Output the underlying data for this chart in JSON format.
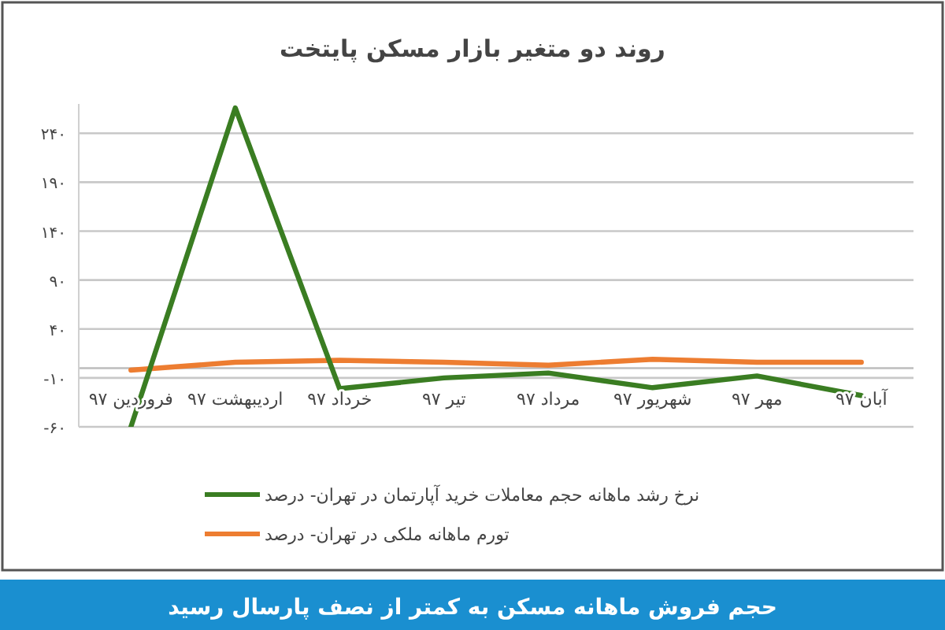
{
  "chart_data": {
    "type": "line",
    "title": "روند دو متغیر بازار مسکن پایتخت",
    "categories": [
      "فروردین ۹۷",
      "اردیبهشت ۹۷",
      "خرداد ۹۷",
      "تیر ۹۷",
      "مرداد ۹۷",
      "شهریور ۹۷",
      "مهر ۹۷",
      "آبان ۹۷"
    ],
    "series": [
      {
        "name": "نرخ رشد ماهانه حجم معاملات خرید آپارتمان در تهران- درصد",
        "color": "#3a7d22",
        "values": [
          -60,
          266,
          -21,
          -10,
          -5,
          -20,
          -8,
          -28
        ]
      },
      {
        "name": "تورم ماهانه ملکی در تهران- درصد",
        "color": "#ed7d31",
        "values": [
          -2,
          6,
          8,
          6,
          3,
          9,
          6,
          6
        ]
      }
    ],
    "ylim": [
      -60,
      270
    ],
    "yticks": [
      {
        "value": -60,
        "label": "-۶۰"
      },
      {
        "value": -10,
        "label": "-۱۰"
      },
      {
        "value": 40,
        "label": "۴۰"
      },
      {
        "value": 90,
        "label": "۹۰"
      },
      {
        "value": 140,
        "label": "۱۴۰"
      },
      {
        "value": 190,
        "label": "۱۹۰"
      },
      {
        "value": 240,
        "label": "۲۴۰"
      }
    ],
    "grid": "y",
    "legend": "bottom",
    "annotations": [
      "حجم فروش ماهانه مسکن به کمتر از نصف پارسال رسید"
    ]
  }
}
